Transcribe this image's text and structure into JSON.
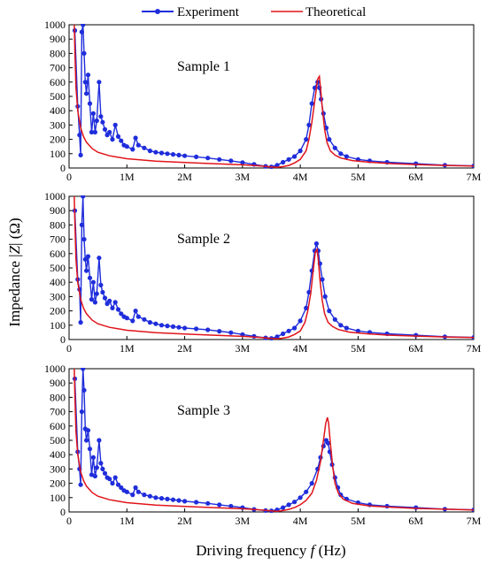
{
  "colors": {
    "experiment": "#1f2ddb",
    "theoretical": "#e0141a",
    "axis": "#000000"
  },
  "legend": {
    "experiment_label": "Experiment",
    "theoretical_label": "Theoretical"
  },
  "axes": {
    "xlabel": "Driving frequency f (Hz)",
    "xlabel_parts": [
      "Driving frequency ",
      "f",
      " (Hz)"
    ],
    "ylabel": "Impedance |Z| (Ω)",
    "ylabel_parts": [
      "Impedance |",
      "Z",
      "| (Ω)"
    ]
  },
  "chart_data": [
    {
      "type": "line",
      "title": "Sample 1",
      "xlim": [
        0,
        7000000
      ],
      "ylim": [
        0,
        1000
      ],
      "xticks": [
        0,
        1000000,
        2000000,
        3000000,
        4000000,
        5000000,
        6000000,
        7000000
      ],
      "xtick_labels": [
        "0",
        "1M",
        "2M",
        "3M",
        "4M",
        "5M",
        "6M",
        "7M"
      ],
      "yticks": [
        0,
        100,
        200,
        300,
        400,
        500,
        600,
        700,
        800,
        900,
        1000
      ],
      "ytick_labels": [
        "0",
        "100",
        "200",
        "300",
        "400",
        "500",
        "600",
        "700",
        "800",
        "900",
        "1000"
      ],
      "series": [
        {
          "name": "Experiment",
          "marker": "circle",
          "x": [
            100000,
            150000,
            180000,
            200000,
            220000,
            240000,
            260000,
            280000,
            300000,
            330000,
            360000,
            390000,
            420000,
            450000,
            480000,
            520000,
            550000,
            580000,
            620000,
            660000,
            700000,
            750000,
            800000,
            850000,
            900000,
            950000,
            1000000,
            1100000,
            1150000,
            1200000,
            1300000,
            1400000,
            1500000,
            1600000,
            1700000,
            1800000,
            1900000,
            2000000,
            2200000,
            2400000,
            2600000,
            2800000,
            3000000,
            3200000,
            3400000,
            3500000,
            3600000,
            3700000,
            3800000,
            3900000,
            4000000,
            4100000,
            4150000,
            4200000,
            4250000,
            4300000,
            4330000,
            4360000,
            4400000,
            4450000,
            4500000,
            4600000,
            4700000,
            4800000,
            5000000,
            5200000,
            5500000,
            6000000,
            6500000,
            7000000
          ],
          "y": [
            960,
            430,
            230,
            90,
            950,
            1000,
            800,
            600,
            520,
            650,
            450,
            250,
            380,
            250,
            330,
            600,
            360,
            320,
            270,
            230,
            250,
            200,
            300,
            220,
            190,
            160,
            150,
            130,
            210,
            160,
            140,
            120,
            110,
            105,
            100,
            95,
            90,
            85,
            78,
            70,
            60,
            50,
            38,
            25,
            12,
            8,
            20,
            40,
            60,
            80,
            120,
            200,
            300,
            450,
            560,
            600,
            560,
            480,
            380,
            280,
            200,
            140,
            100,
            80,
            60,
            50,
            40,
            30,
            20,
            15
          ]
        },
        {
          "name": "Theoretical",
          "marker": "none",
          "x": [
            90000,
            100000,
            120000,
            150000,
            200000,
            250000,
            300000,
            400000,
            500000,
            700000,
            1000000,
            1500000,
            2000000,
            2500000,
            3000000,
            3300000,
            3500000,
            3600000,
            3700000,
            3800000,
            3900000,
            4000000,
            4100000,
            4150000,
            4200000,
            4250000,
            4300000,
            4330000,
            4350000,
            4380000,
            4420000,
            4460000,
            4520000,
            4600000,
            4700000,
            4900000,
            5200000,
            5600000,
            6000000,
            6500000,
            7000000
          ],
          "y": [
            1000,
            830,
            560,
            400,
            280,
            220,
            180,
            135,
            110,
            85,
            65,
            48,
            38,
            30,
            22,
            15,
            8,
            5,
            10,
            18,
            35,
            60,
            120,
            200,
            320,
            470,
            620,
            640,
            560,
            420,
            270,
            180,
            120,
            90,
            70,
            52,
            40,
            30,
            24,
            18,
            14
          ]
        }
      ]
    },
    {
      "type": "line",
      "title": "Sample 2",
      "xlim": [
        0,
        7000000
      ],
      "ylim": [
        0,
        1000
      ],
      "xticks": [
        0,
        1000000,
        2000000,
        3000000,
        4000000,
        5000000,
        6000000,
        7000000
      ],
      "xtick_labels": [
        "0",
        "1M",
        "2M",
        "3M",
        "4M",
        "5M",
        "6M",
        "7M"
      ],
      "yticks": [
        0,
        100,
        200,
        300,
        400,
        500,
        600,
        700,
        800,
        900,
        1000
      ],
      "ytick_labels": [
        "0",
        "100",
        "200",
        "300",
        "400",
        "500",
        "600",
        "700",
        "800",
        "900",
        "1000"
      ],
      "series": [
        {
          "name": "Experiment",
          "marker": "circle",
          "x": [
            100000,
            150000,
            180000,
            200000,
            220000,
            240000,
            260000,
            280000,
            300000,
            330000,
            360000,
            390000,
            420000,
            450000,
            480000,
            520000,
            550000,
            580000,
            620000,
            660000,
            700000,
            750000,
            800000,
            850000,
            900000,
            950000,
            1000000,
            1100000,
            1150000,
            1200000,
            1300000,
            1400000,
            1500000,
            1600000,
            1700000,
            1800000,
            1900000,
            2000000,
            2200000,
            2400000,
            2600000,
            2800000,
            3000000,
            3200000,
            3400000,
            3500000,
            3600000,
            3700000,
            3800000,
            3900000,
            4000000,
            4100000,
            4150000,
            4200000,
            4250000,
            4280000,
            4310000,
            4340000,
            4380000,
            4430000,
            4500000,
            4600000,
            4700000,
            4800000,
            5000000,
            5200000,
            5500000,
            6000000,
            6500000,
            7000000
          ],
          "y": [
            900,
            420,
            350,
            120,
            800,
            1000,
            700,
            560,
            480,
            580,
            430,
            280,
            400,
            260,
            320,
            570,
            380,
            330,
            290,
            250,
            270,
            220,
            260,
            210,
            180,
            160,
            150,
            130,
            200,
            160,
            140,
            120,
            110,
            100,
            95,
            90,
            85,
            80,
            75,
            68,
            58,
            48,
            35,
            22,
            12,
            8,
            20,
            40,
            60,
            80,
            130,
            220,
            330,
            480,
            620,
            670,
            620,
            530,
            420,
            300,
            200,
            140,
            100,
            80,
            60,
            50,
            40,
            30,
            20,
            15
          ]
        },
        {
          "name": "Theoretical",
          "marker": "none",
          "x": [
            90000,
            100000,
            120000,
            150000,
            200000,
            250000,
            300000,
            400000,
            500000,
            700000,
            1000000,
            1500000,
            2000000,
            2500000,
            3000000,
            3300000,
            3500000,
            3600000,
            3700000,
            3800000,
            3900000,
            4000000,
            4080000,
            4130000,
            4180000,
            4220000,
            4260000,
            4290000,
            4310000,
            4340000,
            4380000,
            4420000,
            4480000,
            4560000,
            4660000,
            4850000,
            5150000,
            5550000,
            6000000,
            6500000,
            7000000
          ],
          "y": [
            1000,
            830,
            560,
            400,
            280,
            220,
            180,
            135,
            110,
            85,
            65,
            48,
            38,
            30,
            22,
            15,
            8,
            5,
            10,
            18,
            35,
            60,
            120,
            200,
            320,
            470,
            610,
            630,
            560,
            420,
            270,
            180,
            120,
            90,
            70,
            52,
            40,
            30,
            24,
            18,
            14
          ]
        }
      ]
    },
    {
      "type": "line",
      "title": "Sample 3",
      "xlim": [
        0,
        7000000
      ],
      "ylim": [
        0,
        1000
      ],
      "xticks": [
        0,
        1000000,
        2000000,
        3000000,
        4000000,
        5000000,
        6000000,
        7000000
      ],
      "xtick_labels": [
        "0",
        "1M",
        "2M",
        "3M",
        "4M",
        "5M",
        "6M",
        "7M"
      ],
      "yticks": [
        0,
        100,
        200,
        300,
        400,
        500,
        600,
        700,
        800,
        900,
        1000
      ],
      "ytick_labels": [
        "0",
        "100",
        "200",
        "300",
        "400",
        "500",
        "600",
        "700",
        "800",
        "900",
        "1000"
      ],
      "series": [
        {
          "name": "Experiment",
          "marker": "circle",
          "x": [
            100000,
            150000,
            180000,
            200000,
            220000,
            240000,
            260000,
            280000,
            300000,
            330000,
            360000,
            390000,
            420000,
            450000,
            480000,
            520000,
            550000,
            580000,
            620000,
            660000,
            700000,
            750000,
            800000,
            850000,
            900000,
            950000,
            1000000,
            1100000,
            1150000,
            1200000,
            1300000,
            1400000,
            1500000,
            1600000,
            1700000,
            1800000,
            1900000,
            2000000,
            2200000,
            2400000,
            2600000,
            2800000,
            3000000,
            3200000,
            3400000,
            3500000,
            3600000,
            3700000,
            3800000,
            3900000,
            4000000,
            4100000,
            4200000,
            4300000,
            4350000,
            4400000,
            4450000,
            4480000,
            4510000,
            4550000,
            4600000,
            4650000,
            4700000,
            4800000,
            5000000,
            5200000,
            5500000,
            6000000,
            6500000,
            7000000
          ],
          "y": [
            930,
            420,
            300,
            190,
            700,
            1000,
            850,
            580,
            500,
            570,
            440,
            260,
            380,
            250,
            310,
            500,
            340,
            300,
            270,
            240,
            230,
            200,
            240,
            190,
            170,
            150,
            140,
            120,
            170,
            140,
            120,
            110,
            100,
            95,
            90,
            85,
            80,
            75,
            68,
            60,
            50,
            40,
            30,
            18,
            10,
            8,
            15,
            30,
            50,
            70,
            100,
            140,
            200,
            300,
            380,
            460,
            500,
            480,
            420,
            330,
            240,
            170,
            120,
            90,
            65,
            50,
            40,
            30,
            20,
            15
          ]
        },
        {
          "name": "Theoretical",
          "marker": "none",
          "x": [
            90000,
            100000,
            120000,
            150000,
            200000,
            250000,
            300000,
            400000,
            500000,
            700000,
            1000000,
            1500000,
            2000000,
            2500000,
            3000000,
            3300000,
            3500000,
            3600000,
            3700000,
            3800000,
            3900000,
            4000000,
            4100000,
            4200000,
            4280000,
            4350000,
            4400000,
            4440000,
            4470000,
            4490000,
            4520000,
            4560000,
            4600000,
            4660000,
            4740000,
            4900000,
            5200000,
            5600000,
            6000000,
            6500000,
            7000000
          ],
          "y": [
            1000,
            830,
            560,
            400,
            280,
            220,
            180,
            135,
            110,
            85,
            65,
            48,
            38,
            30,
            22,
            15,
            8,
            5,
            10,
            18,
            30,
            50,
            80,
            130,
            220,
            350,
            500,
            620,
            660,
            620,
            480,
            320,
            200,
            130,
            90,
            60,
            42,
            32,
            25,
            19,
            14
          ]
        }
      ]
    }
  ]
}
